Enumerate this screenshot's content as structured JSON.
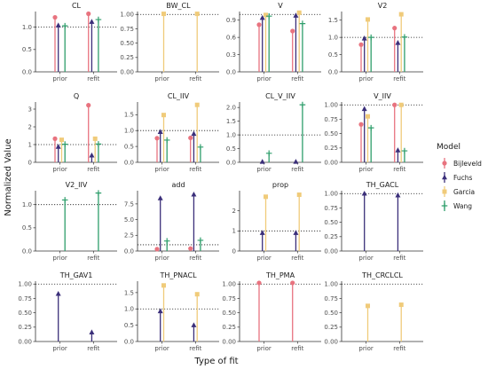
{
  "chart_data": {
    "type": "faceted-lollipop",
    "xlabel": "Type of fit",
    "ylabel": "Normalized Value",
    "categories": [
      "prior",
      "refit"
    ],
    "reference_line": 1,
    "legend": {
      "title": "Model",
      "placement": "right",
      "entries": [
        {
          "name": "Bijleveld",
          "color": "#E8737F",
          "shape": "circle"
        },
        {
          "name": "Fuchs",
          "color": "#3B2F7A",
          "shape": "triangle"
        },
        {
          "name": "Garcia",
          "color": "#F0CB7A",
          "shape": "square"
        },
        {
          "name": "Wang",
          "color": "#2E9E6B",
          "shape": "cross"
        }
      ]
    },
    "panels": [
      {
        "title": "CL",
        "ylim": [
          0,
          1.35
        ],
        "yticks": [
          "0.0",
          "0.5",
          "1.0"
        ],
        "ytick_values": [
          0,
          0.5,
          1.0
        ],
        "values": {
          "prior": {
            "Bijleveld": 1.22,
            "Fuchs": 1.04,
            "Garcia": null,
            "Wang": 1.03
          },
          "refit": {
            "Bijleveld": 1.3,
            "Fuchs": 1.12,
            "Garcia": null,
            "Wang": 1.17
          }
        }
      },
      {
        "title": "BW_CL",
        "ylim": [
          0,
          1.05
        ],
        "yticks": [
          "0.00",
          "0.25",
          "0.50",
          "0.75",
          "1.00"
        ],
        "ytick_values": [
          0,
          0.25,
          0.5,
          0.75,
          1.0
        ],
        "values": {
          "prior": {
            "Bijleveld": null,
            "Fuchs": null,
            "Garcia": 1.01,
            "Wang": null
          },
          "refit": {
            "Bijleveld": null,
            "Fuchs": null,
            "Garcia": 1.01,
            "Wang": null
          }
        }
      },
      {
        "title": "V",
        "ylim": [
          0,
          1.05
        ],
        "yticks": [
          "0.0",
          "0.3",
          "0.6",
          "0.9"
        ],
        "ytick_values": [
          0,
          0.3,
          0.6,
          0.9
        ],
        "values": {
          "prior": {
            "Bijleveld": 0.82,
            "Fuchs": 0.94,
            "Garcia": 0.99,
            "Wang": 0.97
          },
          "refit": {
            "Bijleveld": 0.71,
            "Fuchs": 0.98,
            "Garcia": 1.03,
            "Wang": 0.84
          }
        }
      },
      {
        "title": "V2",
        "ylim": [
          0,
          1.75
        ],
        "yticks": [
          "0.0",
          "0.5",
          "1.0",
          "1.5"
        ],
        "ytick_values": [
          0,
          0.5,
          1.0,
          1.5
        ],
        "values": {
          "prior": {
            "Bijleveld": 0.79,
            "Fuchs": 0.97,
            "Garcia": 1.52,
            "Wang": 1.0
          },
          "refit": {
            "Bijleveld": 1.27,
            "Fuchs": 0.84,
            "Garcia": 1.67,
            "Wang": 1.01
          }
        }
      },
      {
        "title": "Q",
        "ylim": [
          0,
          3.4
        ],
        "yticks": [
          "0",
          "1",
          "2",
          "3"
        ],
        "ytick_values": [
          0,
          1,
          2,
          3
        ],
        "values": {
          "prior": {
            "Bijleveld": 1.33,
            "Fuchs": 0.88,
            "Garcia": 1.27,
            "Wang": 1.02
          },
          "refit": {
            "Bijleveld": 3.22,
            "Fuchs": 0.39,
            "Garcia": 1.33,
            "Wang": 1.03
          }
        }
      },
      {
        "title": "CL_IIV",
        "ylim": [
          0,
          1.9
        ],
        "yticks": [
          "0.0",
          "0.5",
          "1.0",
          "1.5"
        ],
        "ytick_values": [
          0,
          0.5,
          1.0,
          1.5
        ],
        "values": {
          "prior": {
            "Bijleveld": 0.76,
            "Fuchs": 0.96,
            "Garcia": 1.49,
            "Wang": 0.7
          },
          "refit": {
            "Bijleveld": 0.77,
            "Fuchs": 0.9,
            "Garcia": 1.81,
            "Wang": 0.48
          }
        }
      },
      {
        "title": "CL_V_IIV",
        "ylim": [
          0,
          2.2
        ],
        "yticks": [
          "0.0",
          "0.5",
          "1.0",
          "1.5",
          "2.0"
        ],
        "ytick_values": [
          0,
          0.5,
          1.0,
          1.5,
          2.0
        ],
        "values": {
          "prior": {
            "Bijleveld": null,
            "Fuchs": 0.02,
            "Garcia": null,
            "Wang": 0.33
          },
          "refit": {
            "Bijleveld": null,
            "Fuchs": 0.02,
            "Garcia": null,
            "Wang": 2.1
          }
        }
      },
      {
        "title": "V_IIV",
        "ylim": [
          0,
          1.05
        ],
        "yticks": [
          "0.00",
          "0.25",
          "0.50",
          "0.75",
          "1.00"
        ],
        "ytick_values": [
          0,
          0.25,
          0.5,
          0.75,
          1.0
        ],
        "values": {
          "prior": {
            "Bijleveld": 0.66,
            "Fuchs": 0.93,
            "Garcia": 0.8,
            "Wang": 0.6
          },
          "refit": {
            "Bijleveld": 1.0,
            "Fuchs": 0.21,
            "Garcia": 1.0,
            "Wang": 0.2
          }
        }
      },
      {
        "title": "V2_IIV",
        "ylim": [
          0,
          1.3
        ],
        "yticks": [
          "0.0",
          "0.5",
          "1.0"
        ],
        "ytick_values": [
          0,
          0.5,
          1.0
        ],
        "values": {
          "prior": {
            "Bijleveld": null,
            "Fuchs": null,
            "Garcia": null,
            "Wang": 1.1
          },
          "refit": {
            "Bijleveld": null,
            "Fuchs": null,
            "Garcia": null,
            "Wang": 1.25
          }
        }
      },
      {
        "title": "add",
        "ylim": [
          0,
          9.6
        ],
        "yticks": [
          "0.0",
          "2.5",
          "5.0",
          "7.5"
        ],
        "ytick_values": [
          0,
          2.5,
          5.0,
          7.5
        ],
        "values": {
          "prior": {
            "Bijleveld": 0.3,
            "Fuchs": 8.4,
            "Garcia": null,
            "Wang": 1.6
          },
          "refit": {
            "Bijleveld": 0.4,
            "Fuchs": 9.0,
            "Garcia": null,
            "Wang": 1.7
          }
        }
      },
      {
        "title": "prop",
        "ylim": [
          0,
          3.0
        ],
        "yticks": [
          "0",
          "1",
          "2"
        ],
        "ytick_values": [
          0,
          1,
          2
        ],
        "values": {
          "prior": {
            "Bijleveld": null,
            "Fuchs": 0.9,
            "Garcia": 2.7,
            "Wang": null
          },
          "refit": {
            "Bijleveld": null,
            "Fuchs": 0.9,
            "Garcia": 2.8,
            "Wang": null
          }
        }
      },
      {
        "title": "TH_GACL",
        "ylim": [
          0,
          1.05
        ],
        "yticks": [
          "0.00",
          "0.25",
          "0.50",
          "0.75",
          "1.00"
        ],
        "ytick_values": [
          0,
          0.25,
          0.5,
          0.75,
          1.0
        ],
        "values": {
          "prior": {
            "Bijleveld": null,
            "Fuchs": 1.0,
            "Garcia": null,
            "Wang": null
          },
          "refit": {
            "Bijleveld": null,
            "Fuchs": 0.97,
            "Garcia": null,
            "Wang": null
          }
        }
      },
      {
        "title": "TH_GAV1",
        "ylim": [
          0,
          1.05
        ],
        "yticks": [
          "0.00",
          "0.25",
          "0.50",
          "0.75",
          "1.00"
        ],
        "ytick_values": [
          0,
          0.25,
          0.5,
          0.75,
          1.0
        ],
        "values": {
          "prior": {
            "Bijleveld": null,
            "Fuchs": 0.83,
            "Garcia": null,
            "Wang": null
          },
          "refit": {
            "Bijleveld": null,
            "Fuchs": 0.16,
            "Garcia": null,
            "Wang": null
          }
        }
      },
      {
        "title": "TH_PNACL",
        "ylim": [
          0,
          1.85
        ],
        "yticks": [
          "0.0",
          "0.5",
          "1.0",
          "1.5"
        ],
        "ytick_values": [
          0,
          0.5,
          1.0,
          1.5
        ],
        "values": {
          "prior": {
            "Bijleveld": null,
            "Fuchs": 0.93,
            "Garcia": 1.72,
            "Wang": null
          },
          "refit": {
            "Bijleveld": null,
            "Fuchs": 0.5,
            "Garcia": 1.45,
            "Wang": null
          }
        }
      },
      {
        "title": "TH_PMA",
        "ylim": [
          0,
          1.05
        ],
        "yticks": [
          "0.00",
          "0.25",
          "0.50",
          "0.75",
          "1.00"
        ],
        "ytick_values": [
          0,
          0.25,
          0.5,
          0.75,
          1.0
        ],
        "values": {
          "prior": {
            "Bijleveld": 1.02,
            "Fuchs": null,
            "Garcia": null,
            "Wang": null
          },
          "refit": {
            "Bijleveld": 1.02,
            "Fuchs": null,
            "Garcia": null,
            "Wang": null
          }
        }
      },
      {
        "title": "TH_CRCLCL",
        "ylim": [
          0,
          1.05
        ],
        "yticks": [
          "0.00",
          "0.25",
          "0.50",
          "0.75",
          "1.00"
        ],
        "ytick_values": [
          0,
          0.25,
          0.5,
          0.75,
          1.0
        ],
        "values": {
          "prior": {
            "Bijleveld": null,
            "Fuchs": null,
            "Garcia": 0.62,
            "Wang": null
          },
          "refit": {
            "Bijleveld": null,
            "Fuchs": null,
            "Garcia": 0.64,
            "Wang": null
          }
        }
      }
    ]
  }
}
